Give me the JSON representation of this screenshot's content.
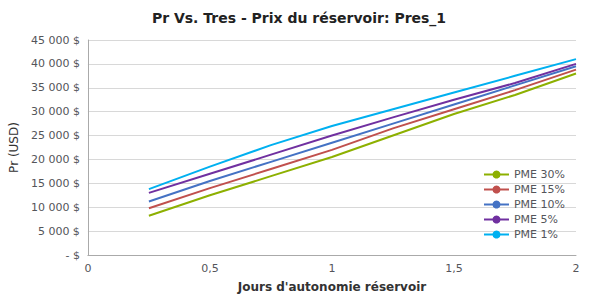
{
  "chart_data": {
    "type": "line",
    "title": "Pr Vs. Tres - Prix du réservoir: Pres_1",
    "x_label": "Jours d'autonomie réservoir",
    "y_label": "Pr (USD)",
    "xlim": [
      0,
      2
    ],
    "ylim": [
      0,
      45000
    ],
    "xticks": [
      0,
      {
        "value": 0.5,
        "label": "0,5"
      },
      1,
      {
        "value": 1.5,
        "label": "1,5"
      },
      2
    ],
    "yticks": [
      {
        "value": 0,
        "label": "- $"
      },
      {
        "value": 5000,
        "label": "5 000 $"
      },
      {
        "value": 10000,
        "label": "10 000 $"
      },
      {
        "value": 15000,
        "label": "15 000 $"
      },
      {
        "value": 20000,
        "label": "20 000 $"
      },
      {
        "value": 25000,
        "label": "25 000 $"
      },
      {
        "value": 30000,
        "label": "30 000 $"
      },
      {
        "value": 35000,
        "label": "35 000 $"
      },
      {
        "value": 40000,
        "label": "40 000 $"
      },
      {
        "value": 45000,
        "label": "45 000 $"
      }
    ],
    "x": [
      0.25,
      0.5,
      0.75,
      1.0,
      1.25,
      1.5,
      1.75,
      2.0
    ],
    "series": [
      {
        "name": "PME 30%",
        "color": "#8DB000",
        "values": [
          8200,
          12500,
          16500,
          20500,
          25000,
          29500,
          33500,
          38000
        ]
      },
      {
        "name": "PME 15%",
        "color": "#C0504D",
        "values": [
          9800,
          14000,
          18000,
          22000,
          26500,
          30500,
          34500,
          38800
        ]
      },
      {
        "name": "PME 10%",
        "color": "#4472C4",
        "values": [
          11200,
          15500,
          19500,
          23500,
          27500,
          31500,
          35500,
          39500
        ]
      },
      {
        "name": "PME 5%",
        "color": "#7030A0",
        "values": [
          13000,
          17000,
          21000,
          25000,
          28800,
          32500,
          36000,
          40000
        ]
      },
      {
        "name": "PME 1%",
        "color": "#00B0F0",
        "values": [
          13800,
          18500,
          23000,
          27000,
          30500,
          34000,
          37500,
          41000
        ]
      }
    ],
    "grid": true,
    "legend": "lower right"
  }
}
